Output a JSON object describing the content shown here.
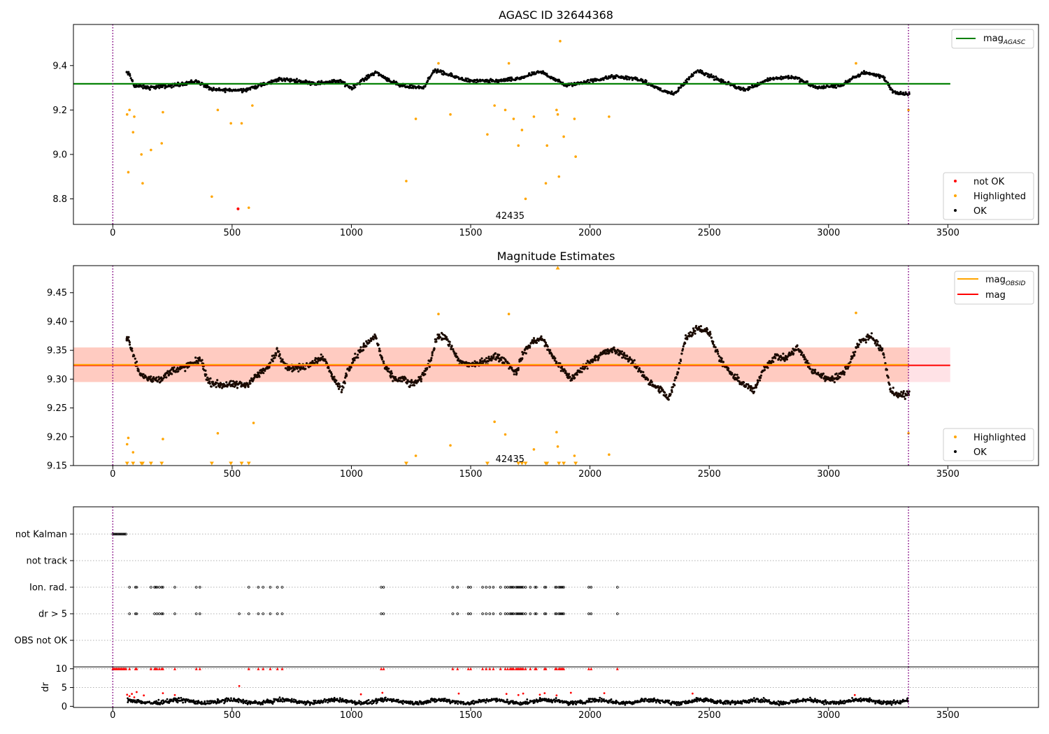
{
  "chart_data": [
    {
      "type": "scatter",
      "title": "AGASC ID 32644368",
      "xlabel": "",
      "ylabel": "",
      "xlim": [
        -165,
        3880
      ],
      "ylim": [
        8.685,
        9.585
      ],
      "xticks": [
        0,
        500,
        1000,
        1500,
        2000,
        2500,
        3000,
        3500
      ],
      "yticks": [
        8.8,
        9.0,
        9.2,
        9.4
      ],
      "ytick_labels": [
        "8.8",
        "9.0",
        "9.2",
        "9.4"
      ],
      "obsid_label": "42435",
      "obsid_label_pos": [
        1665,
        8.71
      ],
      "vlines": [
        0,
        3335
      ],
      "vline_color": "#800080",
      "reference_line": {
        "value": 9.318,
        "x": [
          -165,
          3510
        ],
        "color": "#008000"
      },
      "legend_top": [
        {
          "label": "mag",
          "sub": "AGASC",
          "kind": "line",
          "color": "#008000"
        }
      ],
      "legend_bottom": [
        {
          "label": "not OK",
          "kind": "dot",
          "color": "#ff0000"
        },
        {
          "label": "Highlighted",
          "kind": "dot",
          "color": "#ffa500"
        },
        {
          "label": "OK",
          "kind": "dot",
          "color": "#000000"
        }
      ],
      "ok_series": {
        "x_start": 55,
        "x_end": 3335,
        "step": 5,
        "noise": 0.012,
        "envelope_x": [
          55,
          70,
          90,
          150,
          250,
          350,
          420,
          550,
          650,
          700,
          850,
          950,
          1000,
          1100,
          1200,
          1300,
          1350,
          1400,
          1500,
          1600,
          1700,
          1750,
          1800,
          1900,
          2000,
          2100,
          2200,
          2300,
          2350,
          2450,
          2550,
          2650,
          2750,
          2850,
          2950,
          3050,
          3150,
          3230,
          3270,
          3335
        ],
        "envelope_y": [
          9.37,
          9.36,
          9.31,
          9.3,
          9.31,
          9.33,
          9.29,
          9.29,
          9.32,
          9.34,
          9.32,
          9.33,
          9.3,
          9.37,
          9.31,
          9.3,
          9.38,
          9.36,
          9.33,
          9.33,
          9.34,
          9.36,
          9.37,
          9.31,
          9.33,
          9.35,
          9.34,
          9.29,
          9.27,
          9.38,
          9.33,
          9.29,
          9.34,
          9.35,
          9.3,
          9.31,
          9.37,
          9.35,
          9.28,
          9.27
        ]
      },
      "highlighted": {
        "x": [
          60,
          65,
          70,
          85,
          90,
          120,
          125,
          160,
          205,
          210,
          415,
          440,
          495,
          540,
          570,
          585,
          1230,
          1270,
          1365,
          1415,
          1570,
          1600,
          1645,
          1660,
          1680,
          1700,
          1715,
          1730,
          1765,
          1815,
          1820,
          1860,
          1865,
          1870,
          1875,
          1890,
          1935,
          1940,
          2080,
          3115,
          3335
        ],
        "y": [
          9.18,
          8.92,
          9.2,
          9.1,
          9.17,
          9.0,
          8.87,
          9.02,
          9.05,
          9.19,
          8.81,
          9.2,
          9.14,
          9.14,
          8.76,
          9.22,
          8.88,
          9.16,
          9.41,
          9.18,
          9.09,
          9.22,
          9.2,
          9.41,
          9.16,
          9.04,
          9.11,
          8.8,
          9.17,
          8.87,
          9.04,
          9.2,
          9.18,
          8.9,
          9.51,
          9.08,
          9.16,
          8.99,
          9.17,
          9.41,
          9.2
        ]
      },
      "not_ok": {
        "x": [
          525
        ],
        "y": [
          8.755
        ]
      }
    },
    {
      "type": "scatter",
      "title": "Magnitude Estimates",
      "xlabel": "",
      "ylabel": "",
      "xlim": [
        -165,
        3880
      ],
      "ylim": [
        9.15,
        9.497
      ],
      "xticks": [
        0,
        500,
        1000,
        1500,
        2000,
        2500,
        3000,
        3500
      ],
      "yticks": [
        9.15,
        9.2,
        9.25,
        9.3,
        9.35,
        9.4,
        9.45
      ],
      "ytick_labels": [
        "9.15",
        "9.20",
        "9.25",
        "9.30",
        "9.35",
        "9.40",
        "9.45"
      ],
      "obsid_label": "42435",
      "obsid_label_pos": [
        1665,
        9.156
      ],
      "vlines": [
        0,
        3335
      ],
      "vline_color": "#800080",
      "band_pink": {
        "x": [
          -165,
          3510
        ],
        "y": [
          9.295,
          9.355
        ],
        "color": "#ffb6c1"
      },
      "band_orange": {
        "x": [
          -165,
          3335
        ],
        "y": [
          9.295,
          9.355
        ],
        "color": "#ffa07a"
      },
      "mag_obsid": {
        "value": 9.325,
        "x": [
          -165,
          3335
        ],
        "color": "#ffa500"
      },
      "mag": {
        "value": 9.324,
        "x": [
          -165,
          3510
        ],
        "color": "#ff0000"
      },
      "legend_top": [
        {
          "label": "mag",
          "sub": "OBSID",
          "kind": "line",
          "color": "#ffa500"
        },
        {
          "label": "mag",
          "sub": "",
          "kind": "line",
          "color": "#ff0000"
        }
      ],
      "legend_bottom": [
        {
          "label": "Highlighted",
          "kind": "dot",
          "color": "#ffa500"
        },
        {
          "label": "OK",
          "kind": "dot",
          "color": "#000000"
        }
      ],
      "ok_series": {
        "x_start": 55,
        "x_end": 3335,
        "step": 4,
        "noise": 0.009,
        "envelope_x": [
          55,
          70,
          85,
          110,
          150,
          200,
          250,
          300,
          370,
          400,
          450,
          500,
          560,
          600,
          650,
          690,
          730,
          800,
          880,
          920,
          960,
          980,
          1010,
          1060,
          1100,
          1140,
          1180,
          1220,
          1250,
          1290,
          1330,
          1360,
          1400,
          1450,
          1500,
          1560,
          1600,
          1650,
          1690,
          1720,
          1760,
          1800,
          1850,
          1890,
          1920,
          1960,
          2000,
          2050,
          2100,
          2150,
          2200,
          2260,
          2300,
          2330,
          2360,
          2400,
          2450,
          2500,
          2550,
          2600,
          2650,
          2690,
          2730,
          2780,
          2820,
          2870,
          2930,
          3000,
          3050,
          3090,
          3130,
          3180,
          3230,
          3260,
          3300,
          3335
        ],
        "envelope_y": [
          9.37,
          9.365,
          9.345,
          9.31,
          9.3,
          9.3,
          9.315,
          9.32,
          9.335,
          9.295,
          9.29,
          9.29,
          9.29,
          9.305,
          9.32,
          9.35,
          9.32,
          9.32,
          9.34,
          9.305,
          9.28,
          9.31,
          9.335,
          9.36,
          9.375,
          9.32,
          9.3,
          9.3,
          9.29,
          9.3,
          9.33,
          9.375,
          9.37,
          9.33,
          9.325,
          9.33,
          9.34,
          9.33,
          9.31,
          9.345,
          9.365,
          9.37,
          9.335,
          9.315,
          9.3,
          9.315,
          9.33,
          9.345,
          9.35,
          9.34,
          9.32,
          9.29,
          9.28,
          9.265,
          9.3,
          9.37,
          9.39,
          9.38,
          9.33,
          9.305,
          9.29,
          9.28,
          9.32,
          9.34,
          9.335,
          9.355,
          9.315,
          9.3,
          9.305,
          9.33,
          9.365,
          9.375,
          9.345,
          9.28,
          9.27,
          9.275
        ]
      },
      "highlighted": {
        "x": [
          60,
          65,
          85,
          210,
          440,
          590,
          1270,
          1365,
          1415,
          1600,
          1645,
          1660,
          1765,
          1860,
          1865,
          1935,
          2080,
          3115,
          3335
        ],
        "y": [
          9.187,
          9.198,
          9.173,
          9.196,
          9.206,
          9.224,
          9.167,
          9.413,
          9.185,
          9.226,
          9.204,
          9.413,
          9.178,
          9.208,
          9.183,
          9.167,
          9.169,
          9.415,
          9.206
        ]
      },
      "out_of_range_low": {
        "x": [
          60,
          85,
          120,
          125,
          160,
          205,
          415,
          495,
          540,
          570,
          1230,
          1570,
          1700,
          1715,
          1730,
          1815,
          1820,
          1870,
          1890,
          1940
        ],
        "y": 9.153
      },
      "out_of_range_high": {
        "x": [
          1865
        ],
        "y": 9.494
      }
    },
    {
      "type": "scatter",
      "title": "",
      "xlim": [
        -165,
        3880
      ],
      "categories": [
        "not Kalman",
        "not track",
        "Ion. rad.",
        "dr > 5",
        "OBS not OK"
      ],
      "vlines": [
        0,
        3335
      ],
      "vline_color": "#800080",
      "flags": {
        "not Kalman": {
          "x": [
            0,
            5,
            10,
            15,
            20,
            25,
            30,
            35,
            40,
            45,
            50,
            55
          ]
        },
        "not track": {
          "x": []
        },
        "Ion. rad.": {
          "x": [
            70,
            95,
            100,
            160,
            175,
            180,
            185,
            195,
            205,
            210,
            260,
            350,
            365,
            570,
            610,
            630,
            660,
            690,
            710,
            1125,
            1135,
            1425,
            1445,
            1490,
            1500,
            1550,
            1565,
            1580,
            1595,
            1625,
            1645,
            1655,
            1665,
            1670,
            1675,
            1680,
            1690,
            1695,
            1700,
            1705,
            1710,
            1715,
            1720,
            1730,
            1750,
            1770,
            1775,
            1810,
            1815,
            1855,
            1860,
            1870,
            1875,
            1880,
            1885,
            1890,
            1995,
            2005,
            2115
          ]
        },
        "dr > 5": {
          "x": [
            70,
            95,
            100,
            175,
            185,
            195,
            205,
            210,
            260,
            350,
            365,
            530,
            570,
            610,
            630,
            660,
            690,
            710,
            1125,
            1135,
            1425,
            1445,
            1490,
            1500,
            1550,
            1565,
            1580,
            1595,
            1625,
            1645,
            1655,
            1665,
            1670,
            1675,
            1680,
            1690,
            1695,
            1700,
            1705,
            1710,
            1715,
            1720,
            1730,
            1750,
            1770,
            1775,
            1810,
            1815,
            1855,
            1860,
            1870,
            1875,
            1880,
            1885,
            1890,
            1995,
            2005,
            2115
          ]
        },
        "OBS not OK": {
          "x": []
        }
      }
    },
    {
      "type": "scatter",
      "title": "",
      "ylabel": "dr",
      "xlim": [
        -165,
        3880
      ],
      "ylim": [
        -0.3,
        10.5
      ],
      "xticks": [
        0,
        500,
        1000,
        1500,
        2000,
        2500,
        3000,
        3500
      ],
      "yticks": [
        0,
        5,
        10
      ],
      "vlines": [
        0,
        3335
      ],
      "vline_color": "#800080",
      "clipped_red_y": 10,
      "clipped_red_x": [
        0,
        5,
        10,
        15,
        20,
        25,
        30,
        35,
        40,
        45,
        50,
        55,
        70,
        95,
        100,
        160,
        175,
        180,
        185,
        195,
        205,
        210,
        260,
        350,
        365,
        570,
        610,
        630,
        660,
        690,
        710,
        1125,
        1135,
        1425,
        1445,
        1490,
        1500,
        1550,
        1565,
        1580,
        1595,
        1625,
        1645,
        1655,
        1665,
        1670,
        1675,
        1680,
        1690,
        1695,
        1700,
        1705,
        1710,
        1715,
        1720,
        1730,
        1750,
        1770,
        1775,
        1810,
        1815,
        1855,
        1860,
        1870,
        1875,
        1880,
        1885,
        1890,
        1995,
        2005,
        2115
      ],
      "red_points": {
        "x": [
          60,
          70,
          80,
          90,
          100,
          130,
          210,
          260,
          530,
          1040,
          1130,
          1450,
          1650,
          1700,
          1720,
          1790,
          1810,
          1860,
          1920,
          2060,
          2430,
          3110
        ],
        "y": [
          3.1,
          2.7,
          3.3,
          2.4,
          3.8,
          2.9,
          3.5,
          3.0,
          5.4,
          3.2,
          3.6,
          3.4,
          3.3,
          3.0,
          3.4,
          3.1,
          3.5,
          2.9,
          3.6,
          3.5,
          3.4,
          3.0
        ]
      },
      "ok_series": {
        "x_start": 60,
        "x_end": 3335,
        "step": 4,
        "base": 1.3,
        "noise": 0.8
      }
    }
  ]
}
